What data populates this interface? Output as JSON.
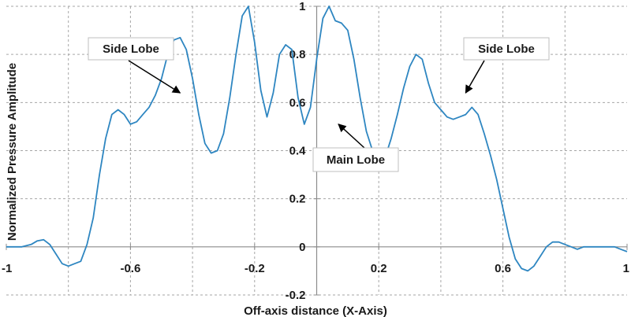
{
  "chart_data": {
    "type": "line",
    "title": "",
    "xlabel": "Off-axis distance (X-Axis)",
    "ylabel": "Normalized Pressure Amplitude",
    "xlim": [
      -1,
      1
    ],
    "ylim": [
      -0.2,
      1
    ],
    "x_ticks": [
      -1,
      -0.6,
      -0.2,
      0.2,
      0.6,
      1
    ],
    "x_tick_labels": [
      "-1",
      "-0.6",
      "-0.2",
      "0.2",
      "0.6",
      "1"
    ],
    "y_ticks": [
      -0.2,
      0,
      0.2,
      0.4,
      0.6,
      0.8,
      1
    ],
    "y_tick_labels": [
      "-0.2",
      "0",
      "0.2",
      "0.4",
      "0.6",
      "0.8",
      "1"
    ],
    "grid": true,
    "legend": false,
    "line_color": "#2e86c1",
    "series": [
      {
        "x": [
          -1,
          -0.95,
          -0.92,
          -0.9,
          -0.88,
          -0.86,
          -0.84,
          -0.82,
          -0.8,
          -0.78,
          -0.76,
          -0.74,
          -0.72,
          -0.7,
          -0.68,
          -0.66,
          -0.64,
          -0.62,
          -0.6,
          -0.58,
          -0.56,
          -0.54,
          -0.52,
          -0.5,
          -0.48,
          -0.46,
          -0.44,
          -0.42,
          -0.4,
          -0.38,
          -0.36,
          -0.34,
          -0.32,
          -0.3,
          -0.28,
          -0.26,
          -0.24,
          -0.22,
          -0.2,
          -0.18,
          -0.16,
          -0.14,
          -0.12,
          -0.1,
          -0.08,
          -0.06,
          -0.04,
          -0.02,
          0,
          0.02,
          0.04,
          0.06,
          0.08,
          0.1,
          0.12,
          0.14,
          0.16,
          0.18,
          0.2,
          0.22,
          0.24,
          0.26,
          0.28,
          0.3,
          0.32,
          0.34,
          0.36,
          0.38,
          0.4,
          0.42,
          0.44,
          0.46,
          0.48,
          0.5,
          0.52,
          0.54,
          0.56,
          0.58,
          0.6,
          0.62,
          0.64,
          0.66,
          0.68,
          0.7,
          0.72,
          0.74,
          0.76,
          0.78,
          0.8,
          0.82,
          0.84,
          0.86,
          0.88,
          0.9,
          0.92,
          0.94,
          0.96,
          0.98,
          1
        ],
        "y": [
          0,
          0,
          0.01,
          0.025,
          0.03,
          0.01,
          -0.03,
          -0.07,
          -0.08,
          -0.07,
          -0.06,
          0.01,
          0.12,
          0.3,
          0.45,
          0.55,
          0.57,
          0.55,
          0.51,
          0.52,
          0.55,
          0.58,
          0.63,
          0.7,
          0.8,
          0.86,
          0.87,
          0.82,
          0.7,
          0.55,
          0.43,
          0.39,
          0.4,
          0.47,
          0.62,
          0.8,
          0.96,
          1.0,
          0.85,
          0.65,
          0.54,
          0.64,
          0.8,
          0.84,
          0.82,
          0.62,
          0.51,
          0.58,
          0.78,
          0.95,
          1.0,
          0.94,
          0.93,
          0.9,
          0.78,
          0.62,
          0.48,
          0.4,
          0.35,
          0.37,
          0.45,
          0.55,
          0.66,
          0.75,
          0.8,
          0.78,
          0.68,
          0.6,
          0.57,
          0.54,
          0.53,
          0.54,
          0.55,
          0.58,
          0.55,
          0.47,
          0.38,
          0.28,
          0.16,
          0.04,
          -0.05,
          -0.09,
          -0.1,
          -0.08,
          -0.04,
          0,
          0.02,
          0.02,
          0.01,
          0,
          -0.01,
          0,
          0,
          0,
          0,
          0,
          0,
          -0.01,
          -0.02
        ]
      }
    ],
    "annotations": [
      {
        "text": "Side Lobe",
        "target_x": -0.44,
        "target_y": 0.64
      },
      {
        "text": "Main Lobe",
        "target_x": 0.07,
        "target_y": 0.51
      },
      {
        "text": "Side Lobe",
        "target_x": 0.48,
        "target_y": 0.64
      }
    ]
  }
}
